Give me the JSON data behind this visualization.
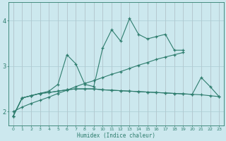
{
  "x": [
    0,
    1,
    2,
    3,
    4,
    5,
    6,
    7,
    8,
    9,
    10,
    11,
    12,
    13,
    14,
    15,
    16,
    17,
    18,
    19,
    20,
    21,
    22,
    23
  ],
  "line_flat1": [
    1.9,
    2.3,
    2.35,
    2.4,
    2.42,
    2.45,
    2.48,
    2.5,
    2.5,
    2.5,
    2.48,
    2.47,
    2.46,
    2.45,
    2.44,
    2.43,
    2.42,
    2.41,
    2.4,
    2.39,
    2.38,
    2.37,
    2.35,
    2.33
  ],
  "line_flat2": [
    1.9,
    2.3,
    2.35,
    2.4,
    2.42,
    2.45,
    2.48,
    2.5,
    2.5,
    2.5,
    2.48,
    2.47,
    2.46,
    2.45,
    2.44,
    2.43,
    2.42,
    2.41,
    2.4,
    2.39,
    2.38,
    2.75,
    2.55,
    2.33
  ],
  "line_diag": [
    2.0,
    2.1,
    2.18,
    2.25,
    2.32,
    2.4,
    2.47,
    2.55,
    2.62,
    2.68,
    2.75,
    2.82,
    2.88,
    2.95,
    3.02,
    3.08,
    3.15,
    3.2,
    3.25,
    3.3,
    null,
    null,
    null,
    null
  ],
  "line_curve": [
    1.9,
    2.3,
    2.35,
    2.4,
    2.45,
    2.6,
    3.25,
    3.05,
    2.6,
    2.55,
    3.4,
    3.8,
    3.55,
    4.05,
    3.7,
    3.6,
    3.65,
    3.7,
    3.35,
    3.35,
    null,
    null,
    null,
    null
  ],
  "line_color": "#2e7d6e",
  "bg_color": "#cce8ee",
  "grid_major_color": "#aaccd4",
  "grid_minor_color": "#d4a0a0",
  "xlabel": "Humidex (Indice chaleur)",
  "ylim": [
    1.7,
    4.4
  ],
  "xlim": [
    -0.5,
    23.5
  ],
  "yticks": [
    2,
    3,
    4
  ],
  "xticks": [
    0,
    1,
    2,
    3,
    4,
    5,
    6,
    7,
    8,
    9,
    10,
    11,
    12,
    13,
    14,
    15,
    16,
    17,
    18,
    19,
    20,
    21,
    22,
    23
  ]
}
